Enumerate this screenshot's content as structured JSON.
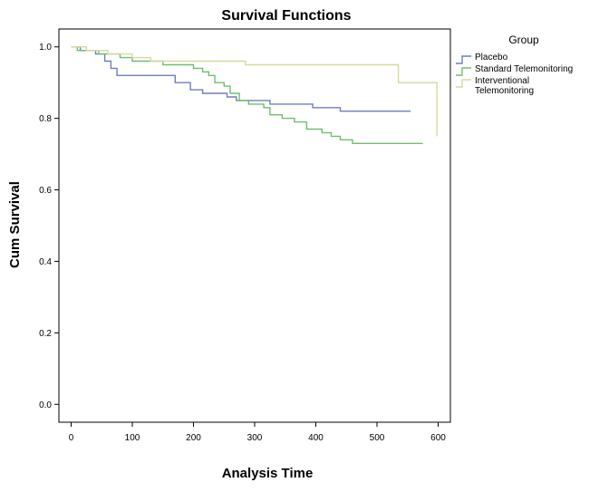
{
  "chart_data": {
    "type": "line",
    "title": "Survival Functions",
    "xlabel": "Analysis Time",
    "ylabel": "Cum Survival",
    "xlim": [
      -20,
      620
    ],
    "ylim": [
      -0.05,
      1.05
    ],
    "xticks": [
      0,
      100,
      200,
      300,
      400,
      500,
      600
    ],
    "yticks": [
      0.0,
      0.2,
      0.4,
      0.6,
      0.8,
      1.0
    ],
    "ytick_labels": [
      "0.0",
      "0.2",
      "0.4",
      "0.6",
      "0.8",
      "1.0"
    ],
    "legend": {
      "title": "Group",
      "placement": "right"
    },
    "grid": false,
    "series": [
      {
        "name": "Placebo",
        "color": "#6f7fc0",
        "step": true,
        "points": [
          [
            0,
            1.0
          ],
          [
            15,
            0.99
          ],
          [
            40,
            0.98
          ],
          [
            55,
            0.96
          ],
          [
            65,
            0.94
          ],
          [
            75,
            0.92
          ],
          [
            170,
            0.9
          ],
          [
            195,
            0.88
          ],
          [
            215,
            0.87
          ],
          [
            255,
            0.86
          ],
          [
            270,
            0.85
          ],
          [
            325,
            0.84
          ],
          [
            360,
            0.84
          ],
          [
            395,
            0.83
          ],
          [
            440,
            0.82
          ],
          [
            555,
            0.82
          ]
        ]
      },
      {
        "name": "Standard Telemonitoring",
        "color": "#6fbf6f",
        "step": true,
        "points": [
          [
            0,
            1.0
          ],
          [
            10,
            0.99
          ],
          [
            45,
            0.98
          ],
          [
            80,
            0.97
          ],
          [
            100,
            0.96
          ],
          [
            150,
            0.95
          ],
          [
            200,
            0.94
          ],
          [
            215,
            0.93
          ],
          [
            225,
            0.92
          ],
          [
            235,
            0.9
          ],
          [
            250,
            0.89
          ],
          [
            260,
            0.87
          ],
          [
            275,
            0.85
          ],
          [
            290,
            0.84
          ],
          [
            315,
            0.83
          ],
          [
            325,
            0.81
          ],
          [
            345,
            0.8
          ],
          [
            365,
            0.79
          ],
          [
            385,
            0.77
          ],
          [
            410,
            0.76
          ],
          [
            425,
            0.75
          ],
          [
            440,
            0.74
          ],
          [
            460,
            0.73
          ],
          [
            575,
            0.73
          ]
        ]
      },
      {
        "name": "Interventional Telemonitoring",
        "legend_lines": [
          "Interventional",
          "Telemonitoring"
        ],
        "color": "#d8d8a0",
        "step": true,
        "points": [
          [
            0,
            1.0
          ],
          [
            25,
            0.99
          ],
          [
            60,
            0.98
          ],
          [
            100,
            0.97
          ],
          [
            130,
            0.96
          ],
          [
            285,
            0.95
          ],
          [
            535,
            0.9
          ],
          [
            598,
            0.75
          ]
        ]
      }
    ]
  }
}
